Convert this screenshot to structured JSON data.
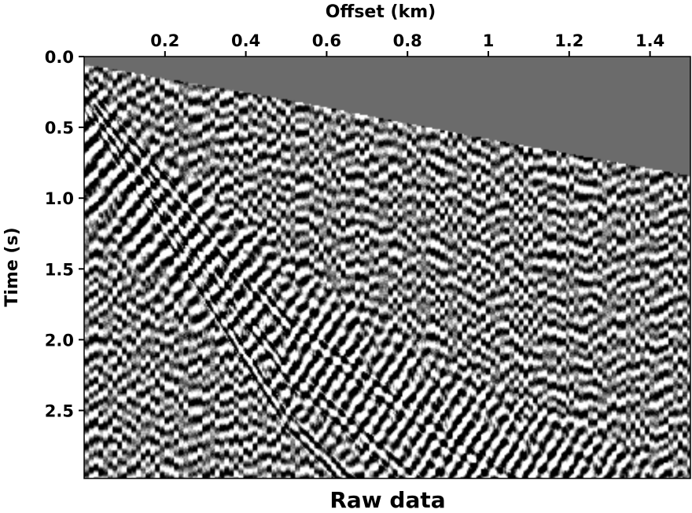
{
  "chart_data": {
    "type": "heatmap",
    "title": "Raw data",
    "xlabel": "Offset (km)",
    "ylabel": "Time (s)",
    "x_axis_position": "top",
    "xlim": [
      0.0,
      1.5
    ],
    "ylim": [
      2.98,
      0.0
    ],
    "x_ticks": [
      0.2,
      0.4,
      0.6,
      0.8,
      1.0,
      1.2,
      1.4
    ],
    "x_tick_labels": [
      "0.2",
      "0.4",
      "0.6",
      "0.8",
      "1",
      "1.2",
      "1.4"
    ],
    "y_ticks": [
      0.0,
      0.5,
      1.0,
      1.5,
      2.0,
      2.5
    ],
    "y_tick_labels": [
      "0.0",
      "0.5",
      "1.0",
      "1.5",
      "2.0",
      "2.5"
    ],
    "colormap": "grayscale",
    "muted_region_color": "#6b6b6b",
    "events": [
      {
        "name": "first-break",
        "offset_km": [
          0.0,
          0.5,
          1.0,
          1.5
        ],
        "time_s": [
          0.05,
          0.3,
          0.58,
          0.84
        ]
      },
      {
        "name": "ground-roll",
        "offset_km": [
          0.0,
          0.5,
          1.0,
          1.5
        ],
        "time_s": [
          0.2,
          1.55,
          2.4,
          3.05
        ]
      }
    ],
    "grid": false
  }
}
